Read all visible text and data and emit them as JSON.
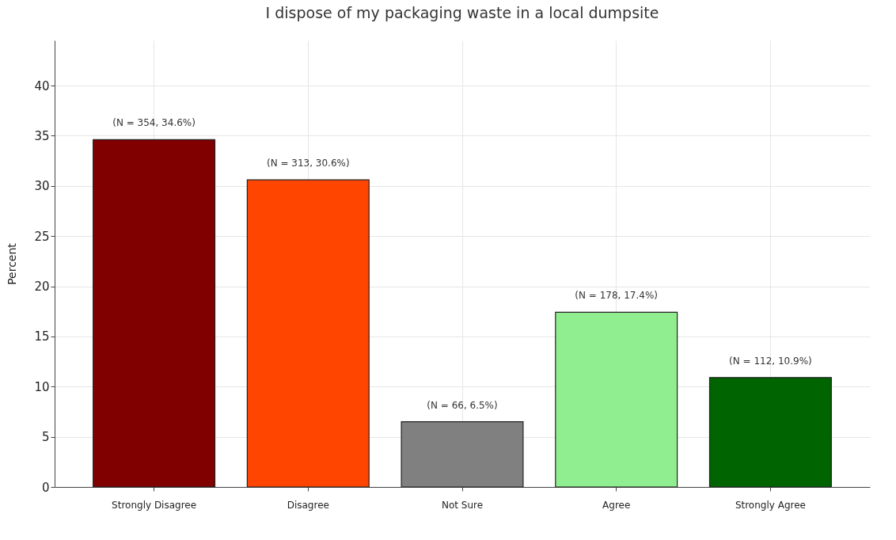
{
  "chart_data": {
    "type": "bar",
    "title": "I dispose of my packaging waste in a local dumpsite",
    "ylabel": "Percent",
    "categories": [
      "Strongly Disagree",
      "Disagree",
      "Not Sure",
      "Agree",
      "Strongly Agree"
    ],
    "values": [
      34.6,
      30.6,
      6.5,
      17.4,
      10.9
    ],
    "colors": [
      "#800000",
      "#ff4500",
      "#808080",
      "#90ee90",
      "#006400"
    ],
    "value_labels": [
      "(N = 354, 34.6%)",
      "(N = 313, 30.6%)",
      "(N = 66, 6.5%)",
      "(N = 178, 17.4%)",
      "(N = 112, 10.9%)"
    ],
    "ylim": [
      0,
      44.5
    ],
    "yticks": [
      0,
      5,
      10,
      15,
      20,
      25,
      30,
      35,
      40
    ],
    "grid": true
  }
}
